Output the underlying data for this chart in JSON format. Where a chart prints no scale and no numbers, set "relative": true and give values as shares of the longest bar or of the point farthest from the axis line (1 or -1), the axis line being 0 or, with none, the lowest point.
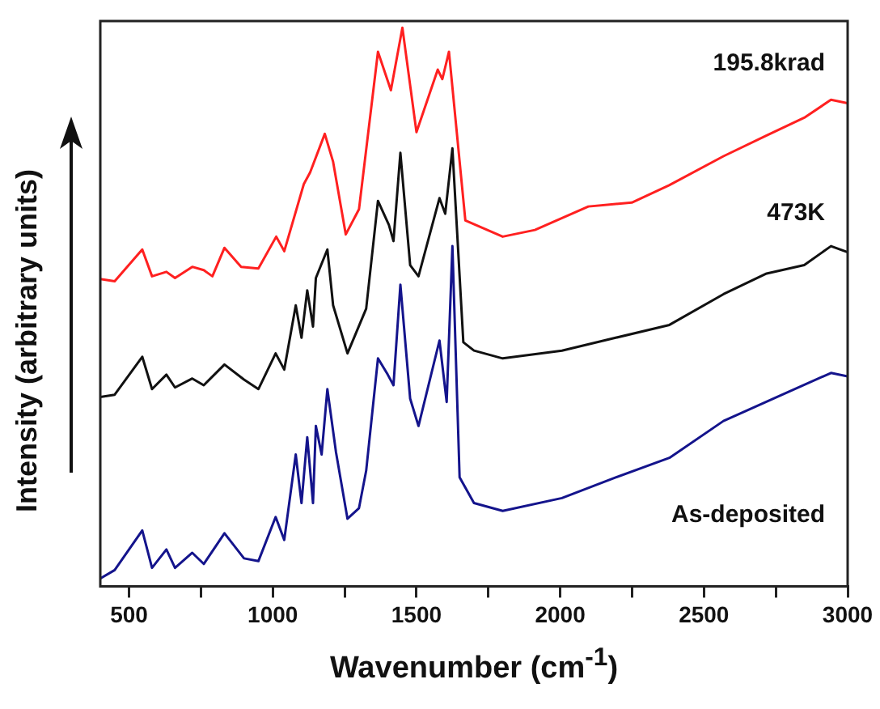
{
  "chart_data": {
    "type": "line",
    "xlabel": "Wavenumber (cm$^{-1}$)",
    "ylabel": "Intensity (arbitrary units)",
    "relative": true,
    "xlim": [
      400,
      3000
    ],
    "xticks": [
      500,
      {
        "value": 750,
        "label": null
      },
      1000,
      {
        "value": 1250,
        "label": null
      },
      1500,
      {
        "value": 1750,
        "label": null
      },
      2000,
      {
        "value": 2250,
        "label": null
      },
      2500,
      {
        "value": 2750,
        "label": null
      },
      3000
    ],
    "grid": false,
    "legend": false,
    "marker": "none",
    "line_style": "solid",
    "series": [
      {
        "name": "195.8krad",
        "color": "#ff2020",
        "x": [
          400,
          450,
          546,
          580,
          630,
          660,
          720,
          760,
          790,
          832,
          890,
          950,
          1012,
          1040,
          1108,
          1130,
          1181,
          1210,
          1254,
          1300,
          1366,
          1411,
          1451,
          1500,
          1574,
          1590,
          1613,
          1670,
          1800,
          1912,
          2098,
          2249,
          2379,
          2568,
          2718,
          2849,
          2942,
          3000
        ],
        "values": [
          0.55,
          0.546,
          0.603,
          0.555,
          0.563,
          0.552,
          0.572,
          0.566,
          0.555,
          0.606,
          0.572,
          0.569,
          0.626,
          0.6,
          0.72,
          0.741,
          0.81,
          0.76,
          0.63,
          0.675,
          0.957,
          0.888,
          1.0,
          0.813,
          0.925,
          0.908,
          0.957,
          0.655,
          0.626,
          0.638,
          0.68,
          0.687,
          0.718,
          0.77,
          0.807,
          0.839,
          0.871,
          0.865
        ]
      },
      {
        "name": "473K",
        "color": "#111111",
        "x": [
          400,
          450,
          546,
          580,
          630,
          660,
          720,
          760,
          832,
          900,
          950,
          1010,
          1040,
          1080,
          1100,
          1120,
          1140,
          1150,
          1190,
          1210,
          1260,
          1325,
          1366,
          1404,
          1420,
          1444,
          1478,
          1507,
          1580,
          1600,
          1625,
          1663,
          1700,
          1800,
          2006,
          2193,
          2380,
          2568,
          2718,
          2849,
          2942,
          3000
        ],
        "values": [
          0.339,
          0.343,
          0.411,
          0.353,
          0.379,
          0.356,
          0.372,
          0.36,
          0.397,
          0.37,
          0.353,
          0.417,
          0.388,
          0.503,
          0.445,
          0.53,
          0.465,
          0.552,
          0.603,
          0.503,
          0.417,
          0.497,
          0.69,
          0.647,
          0.618,
          0.776,
          0.575,
          0.555,
          0.695,
          0.667,
          0.784,
          0.437,
          0.422,
          0.408,
          0.422,
          0.445,
          0.468,
          0.523,
          0.56,
          0.575,
          0.609,
          0.598
        ]
      },
      {
        "name": "As-deposited",
        "color": "#14148c",
        "x": [
          400,
          450,
          546,
          580,
          630,
          660,
          720,
          760,
          832,
          900,
          950,
          1010,
          1040,
          1080,
          1100,
          1120,
          1140,
          1150,
          1170,
          1190,
          1220,
          1260,
          1300,
          1325,
          1366,
          1400,
          1420,
          1444,
          1478,
          1507,
          1580,
          1605,
          1625,
          1650,
          1700,
          1800,
          2006,
          2193,
          2380,
          2568,
          2755,
          2942,
          3000
        ],
        "values": [
          0.014,
          0.029,
          0.1,
          0.033,
          0.066,
          0.033,
          0.06,
          0.04,
          0.095,
          0.05,
          0.045,
          0.124,
          0.083,
          0.236,
          0.149,
          0.267,
          0.149,
          0.287,
          0.236,
          0.353,
          0.24,
          0.121,
          0.14,
          0.207,
          0.408,
          0.379,
          0.36,
          0.54,
          0.336,
          0.287,
          0.44,
          0.33,
          0.609,
          0.195,
          0.149,
          0.135,
          0.158,
          0.195,
          0.23,
          0.296,
          0.339,
          0.382,
          0.376
        ]
      }
    ]
  }
}
